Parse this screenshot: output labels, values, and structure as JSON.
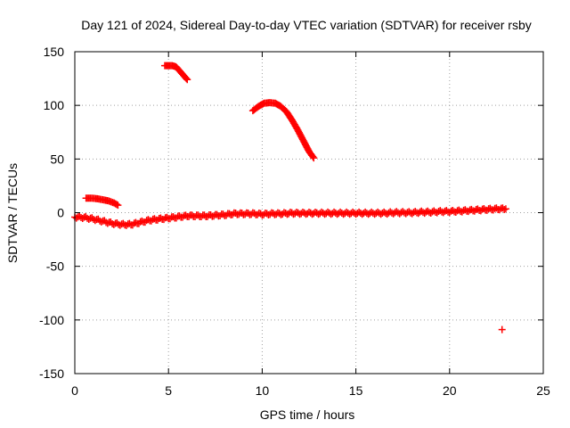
{
  "chart_data": {
    "type": "scatter",
    "title": "Day 121 of 2024, Sidereal Day-to-day VTEC variation (SDTVAR) for receiver rsby",
    "xlabel": "GPS time / hours",
    "ylabel": "SDTVAR / TECUs",
    "xlim": [
      0,
      25
    ],
    "ylim": [
      -150,
      150
    ],
    "xticks": [
      0,
      5,
      10,
      15,
      20,
      25
    ],
    "yticks": [
      -150,
      -100,
      -50,
      0,
      50,
      100,
      150
    ],
    "xtick_labels": [
      "0",
      "5",
      "10",
      "15",
      "20",
      "25"
    ],
    "ytick_labels": [
      "-150",
      "-100",
      "-50",
      "0",
      "50",
      "100",
      "150"
    ],
    "grid": true,
    "series_color": "#ff0000",
    "series": [
      {
        "name": "main track",
        "x": [
          0.0,
          0.5,
          1.0,
          1.5,
          2.0,
          2.5,
          3.0,
          3.5,
          4.0,
          4.5,
          5.0,
          5.5,
          6.0,
          6.5,
          7.0,
          7.5,
          8.0,
          8.5,
          9.0,
          9.5,
          10.0,
          10.5,
          11.0,
          11.5,
          12.0,
          12.5,
          13.0,
          13.5,
          14.0,
          14.5,
          15.0,
          15.5,
          16.0,
          16.5,
          17.0,
          17.5,
          18.0,
          18.5,
          19.0,
          19.5,
          20.0,
          20.5,
          21.0,
          21.5,
          22.0,
          22.5,
          23.0
        ],
        "y": [
          -4,
          -4.5,
          -6,
          -8,
          -10,
          -11,
          -11,
          -9,
          -7,
          -6,
          -5,
          -4,
          -3,
          -3,
          -3,
          -2.5,
          -2,
          -1,
          -1,
          -1,
          -1.5,
          -1,
          -1,
          -0.5,
          -0.5,
          -0.5,
          -0.5,
          -0.5,
          -0.5,
          -0.5,
          -0.5,
          -0.5,
          -0.5,
          -0.5,
          0,
          0,
          0,
          0.5,
          0.5,
          1,
          1,
          1.5,
          2,
          2.5,
          3,
          3.5,
          3.5
        ]
      },
      {
        "name": "arc near 1h",
        "x": [
          0.6,
          0.9,
          1.2,
          1.5,
          1.8,
          2.1,
          2.3
        ],
        "y": [
          13.5,
          13.5,
          13,
          12,
          11,
          9,
          7
        ]
      },
      {
        "name": "arc near 5h",
        "x": [
          4.8,
          5.0,
          5.2,
          5.4,
          5.6,
          5.8,
          6.0
        ],
        "y": [
          137,
          137,
          137,
          136,
          132,
          128,
          124
        ]
      },
      {
        "name": "arc near 10h",
        "x": [
          9.5,
          9.8,
          10.1,
          10.4,
          10.7,
          11.0,
          11.3,
          11.6,
          11.9,
          12.2,
          12.5,
          12.75
        ],
        "y": [
          95,
          99,
          102,
          102.5,
          102,
          99,
          94,
          86,
          77,
          67,
          57,
          51
        ]
      },
      {
        "name": "isolated point",
        "x": [
          22.8
        ],
        "y": [
          -109
        ]
      }
    ]
  }
}
